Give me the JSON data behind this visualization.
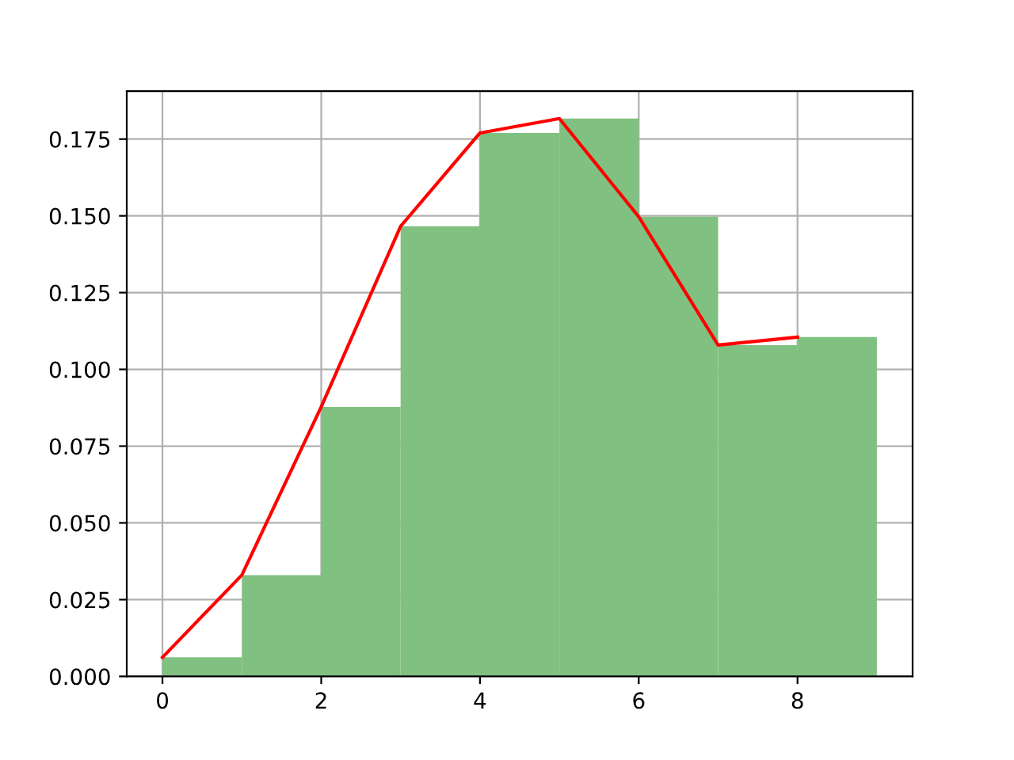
{
  "chart_data": {
    "type": "histogram",
    "bins": [
      0,
      1,
      2,
      3,
      4,
      5,
      6,
      7,
      8,
      9
    ],
    "values": [
      0.0062,
      0.033,
      0.0878,
      0.1466,
      0.177,
      0.1817,
      0.1497,
      0.1079,
      0.1105
    ],
    "color": "#80c080",
    "series": [
      {
        "type": "line",
        "x": [
          0,
          1,
          2,
          3,
          4,
          5,
          6,
          7,
          8
        ],
        "values": [
          0.0062,
          0.033,
          0.0878,
          0.1466,
          0.177,
          0.1817,
          0.1497,
          0.1079,
          0.1105
        ],
        "color": "#ff0000"
      }
    ],
    "xlim": [
      -0.45,
      9.45
    ],
    "xticks": [
      0,
      2,
      4,
      6,
      8
    ],
    "ylim": [
      0,
      0.1906
    ],
    "yticks": [
      {
        "value": 0,
        "label": "0.000"
      },
      {
        "value": 0.025,
        "label": "0.025"
      },
      {
        "value": 0.05,
        "label": "0.050"
      },
      {
        "value": 0.075,
        "label": "0.075"
      },
      {
        "value": 0.1,
        "label": "0.100"
      },
      {
        "value": 0.125,
        "label": "0.125"
      },
      {
        "value": 0.15,
        "label": "0.150"
      },
      {
        "value": 0.175,
        "label": "0.175"
      }
    ],
    "grid": true
  }
}
